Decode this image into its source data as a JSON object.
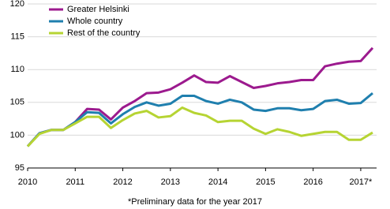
{
  "chart_data": {
    "type": "line",
    "categories": [
      "2010",
      null,
      null,
      null,
      "2011",
      null,
      null,
      null,
      "2012",
      null,
      null,
      null,
      "2013",
      null,
      null,
      null,
      "2014",
      null,
      null,
      null,
      "2015",
      null,
      null,
      null,
      "2016",
      null,
      null,
      null,
      "2017*",
      null
    ],
    "series": [
      {
        "name": "Greater Helsinki",
        "color": "#9c1a8e",
        "values": [
          98.3,
          100.3,
          100.8,
          100.8,
          102,
          104,
          103.9,
          102.4,
          104.2,
          105.2,
          106.4,
          106.5,
          107,
          108,
          109.1,
          108.1,
          108,
          109,
          108.1,
          107.2,
          107.5,
          107.9,
          108.1,
          108.4,
          108.4,
          110.5,
          110.9,
          111.2,
          111.3,
          113.3
        ]
      },
      {
        "name": "Whole country",
        "color": "#1f7fae",
        "values": [
          98.3,
          100.3,
          100.8,
          100.8,
          102,
          103.5,
          103.4,
          101.8,
          103.2,
          104.3,
          105,
          104.5,
          104.8,
          106,
          106,
          105.2,
          104.8,
          105.4,
          105,
          103.9,
          103.7,
          104.1,
          104.1,
          103.8,
          104,
          105.2,
          105.4,
          104.8,
          104.9,
          106.4
        ]
      },
      {
        "name": "Rest of the country",
        "color": "#b6d433",
        "values": [
          98.3,
          100.2,
          100.8,
          100.8,
          101.8,
          102.8,
          102.8,
          101.1,
          102.3,
          103.3,
          103.7,
          102.7,
          102.9,
          104.2,
          103.4,
          103,
          102,
          102.2,
          102.2,
          101,
          100.2,
          100.9,
          100.5,
          99.9,
          100.2,
          100.5,
          100.5,
          99.3,
          99.3,
          100.4
        ]
      }
    ],
    "ylim": [
      95,
      120
    ],
    "yticks": [
      95,
      100,
      105,
      110,
      115,
      120
    ],
    "grid": true,
    "note": "*Preliminary data for the year 2017"
  }
}
